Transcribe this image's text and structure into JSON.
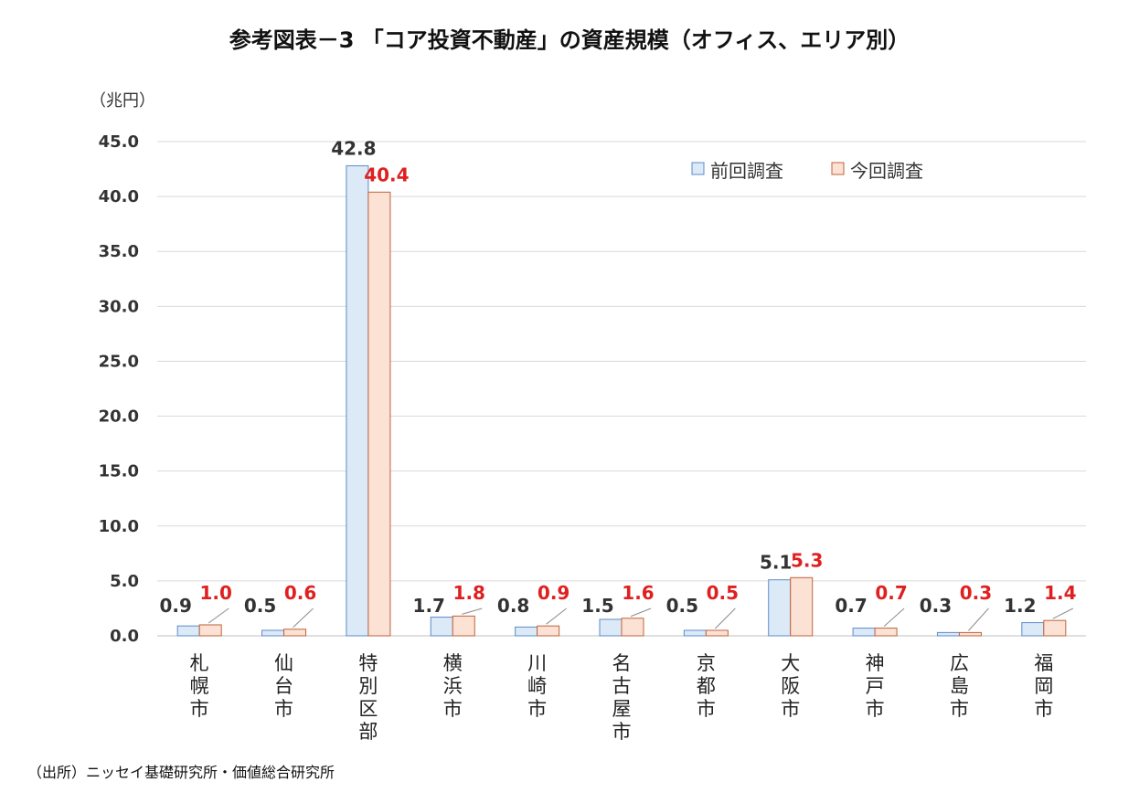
{
  "chart_data": {
    "type": "bar",
    "title": "参考図表－3 「コア投資不動産」の資産規模（オフィス、エリア別）",
    "ylabel": "（兆円）",
    "source": "（出所）ニッセイ基礎研究所・価値総合研究所",
    "ylim": [
      0,
      45
    ],
    "yticks": [
      "45.0",
      "40.0",
      "35.0",
      "30.0",
      "25.0",
      "20.0",
      "15.0",
      "10.0",
      "5.0",
      "0.0"
    ],
    "grid": true,
    "legend_position": "top-right",
    "categories": [
      "札幌市",
      "仙台市",
      "特別区部",
      "横浜市",
      "川崎市",
      "名古屋市",
      "京都市",
      "大阪市",
      "神戸市",
      "広島市",
      "福岡市"
    ],
    "series": [
      {
        "name": "前回調査",
        "color": "#dce9f7",
        "stroke": "#5b8cc8",
        "label_color": "#333333",
        "values": [
          0.9,
          0.5,
          42.8,
          1.7,
          0.8,
          1.5,
          0.5,
          5.1,
          0.7,
          0.3,
          1.2
        ],
        "labels": [
          "0.9",
          "0.5",
          "42.8",
          "1.7",
          "0.8",
          "1.5",
          "0.5",
          "5.1",
          "0.7",
          "0.3",
          "1.2"
        ]
      },
      {
        "name": "今回調査",
        "color": "#fbe2d5",
        "stroke": "#c0623a",
        "label_color": "#e02020",
        "values": [
          1.0,
          0.6,
          40.4,
          1.8,
          0.9,
          1.6,
          0.5,
          5.3,
          0.7,
          0.3,
          1.4
        ],
        "labels": [
          "1.0",
          "0.6",
          "40.4",
          "1.8",
          "0.9",
          "1.6",
          "0.5",
          "5.3",
          "0.7",
          "0.3",
          "1.4"
        ]
      }
    ]
  }
}
